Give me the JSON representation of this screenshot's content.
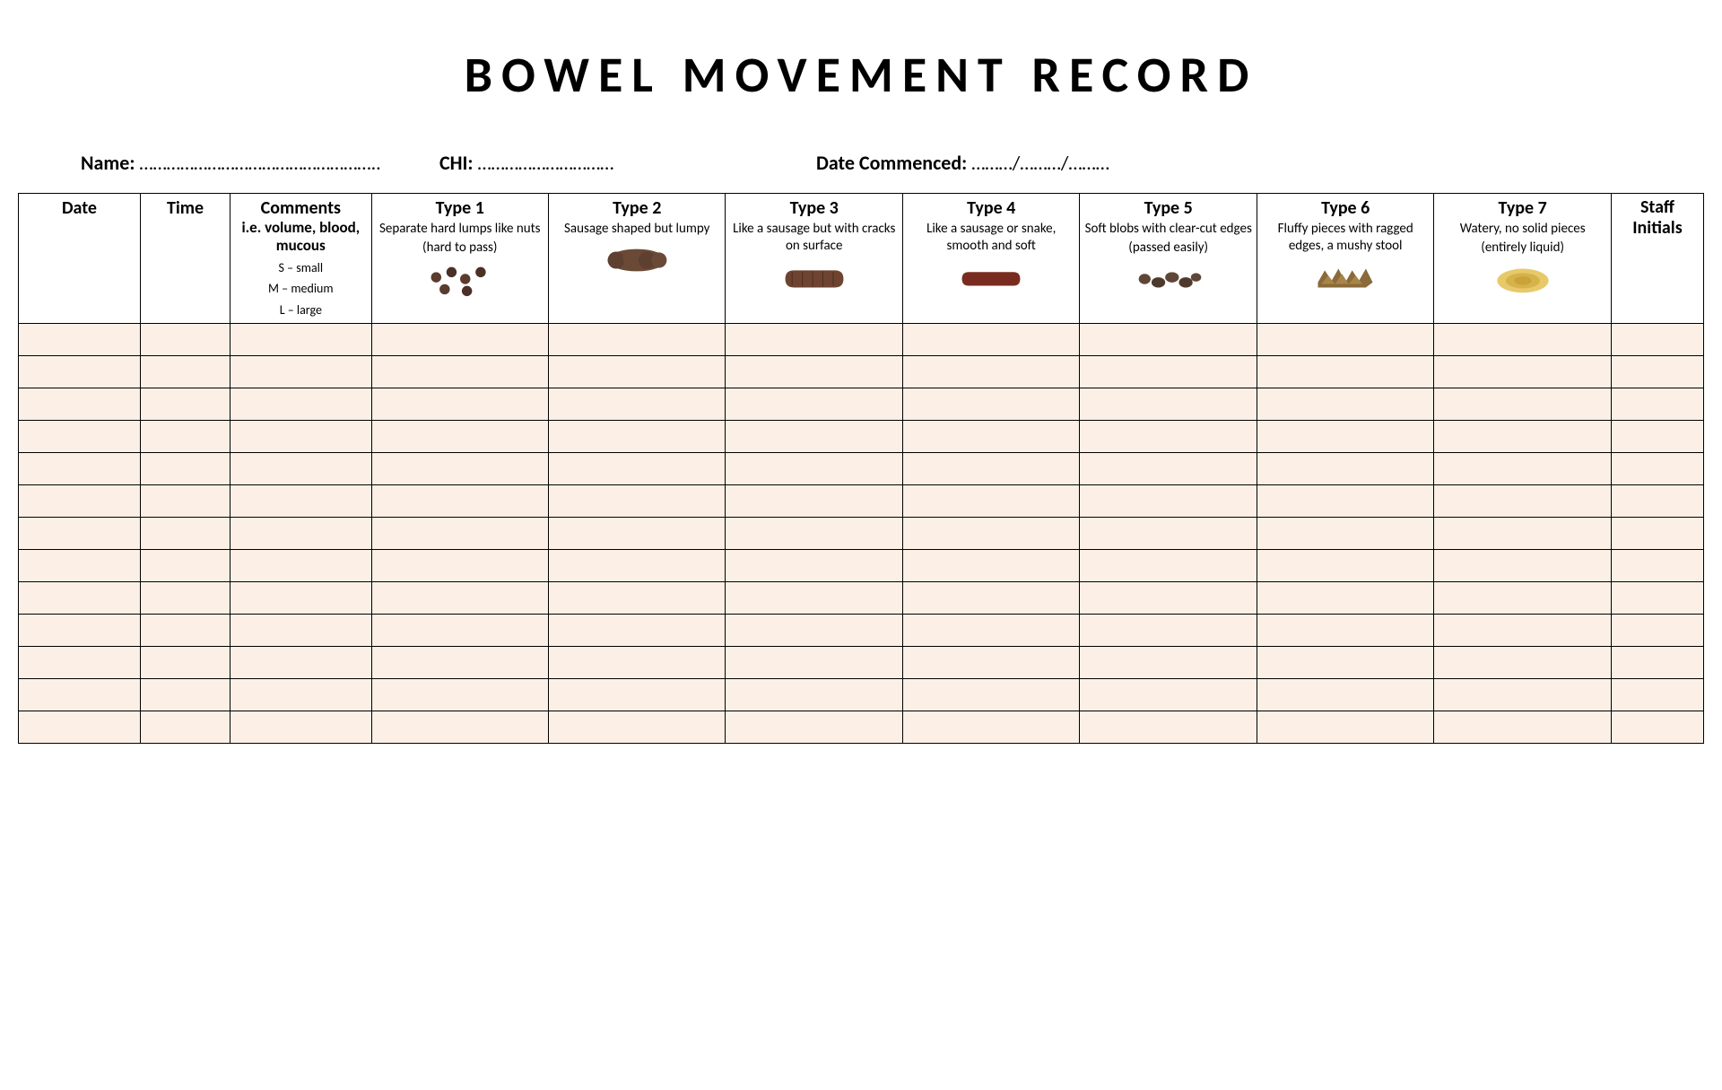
{
  "title": "BOWEL MOVEMENT RECORD",
  "meta": {
    "name_label": "Name: ",
    "name_dots": "……………………………………………..",
    "chi_label": "CHI: ",
    "chi_dots": "…………………………",
    "date_label": "Date Commenced: ",
    "date_dots": "………/………/………"
  },
  "columns": {
    "date": {
      "title": "Date"
    },
    "time": {
      "title": "Time"
    },
    "comments": {
      "title": "Comments",
      "sub": "i.e. volume, blood, mucous",
      "legend": [
        "S – small",
        "M – medium",
        "L – large"
      ]
    },
    "types": [
      {
        "title": "Type 1",
        "desc": "Separate hard lumps like nuts\n(hard to pass)",
        "icon": "type1"
      },
      {
        "title": "Type 2",
        "desc": "Sausage shaped but lumpy",
        "icon": "type2"
      },
      {
        "title": "Type 3",
        "desc": "Like a sausage but with cracks on surface",
        "icon": "type3"
      },
      {
        "title": "Type 4",
        "desc": "Like a sausage or snake, smooth and soft",
        "icon": "type4"
      },
      {
        "title": "Type 5",
        "desc": "Soft blobs with clear-cut edges\n(passed easily)",
        "icon": "type5"
      },
      {
        "title": "Type 6",
        "desc": "Fluffy pieces with ragged edges, a mushy stool",
        "icon": "type6"
      },
      {
        "title": "Type 7",
        "desc": "Watery, no solid pieces\n(entirely liquid)",
        "icon": "type7"
      }
    ],
    "staff": {
      "title": "Staff Initials"
    }
  },
  "row_count": 13,
  "style": {
    "row_bg": "#fcf0e6",
    "border_color": "#000000",
    "title_fontsize": 56,
    "icon_colors": {
      "type1": "#5a3b2e",
      "type2": "#6a4a36",
      "type3": "#6e4430",
      "type4": "#7a2b1f",
      "type5": "#5e4636",
      "type6": "#8a6a3a",
      "type7": "#d6b34a"
    }
  }
}
